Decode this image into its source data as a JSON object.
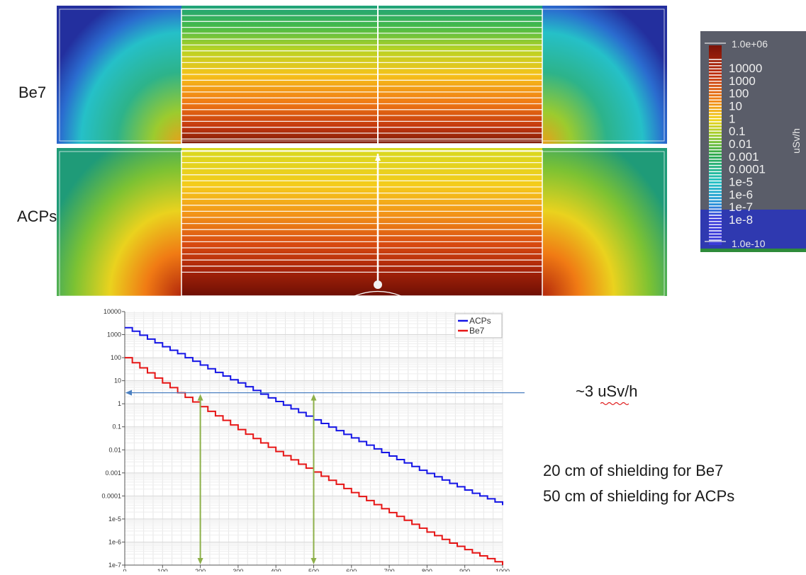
{
  "maps": {
    "be7_label": "Be7",
    "acps_label": "ACPs"
  },
  "colorbar": {
    "unit": "uSv/h",
    "max_label": "1.0e+06",
    "min_label": "1.0e-10",
    "tick_labels": [
      "10000",
      "1000",
      "100",
      "10",
      "1",
      "0.1",
      "0.01",
      "0.001",
      "0.0001",
      "1e-5",
      "1e-6",
      "1e-7",
      "1e-8"
    ]
  },
  "annotations": {
    "threshold": "~3 uSv/h",
    "be7_shielding": "20 cm of shielding for Be7",
    "acps_shielding": "50 cm of shielding for ACPs"
  },
  "colors": {
    "acps": "#1515e6",
    "be7": "#e61515",
    "threshold_line": "#4a7fc1",
    "marker_arrows": "#8db04a"
  },
  "chart_data": {
    "type": "line",
    "title": "",
    "xlabel": "",
    "ylabel": "",
    "y_scale": "log",
    "xlim": [
      0,
      1000
    ],
    "ylim": [
      1e-07,
      10000
    ],
    "grid": true,
    "legend_position": "top-right",
    "x_tick_labels": [
      "0",
      "100",
      "200",
      "300",
      "400",
      "500",
      "600",
      "700",
      "800",
      "900",
      "1000"
    ],
    "y_tick_labels": [
      "10000",
      "1000",
      "100",
      "10",
      "1",
      "0.1",
      "0.01",
      "0.001",
      "0.0001",
      "1e-5",
      "1e-6",
      "1e-7"
    ],
    "series": [
      {
        "name": "ACPs",
        "x": [
          0,
          20,
          40,
          60,
          80,
          100,
          120,
          140,
          160,
          180,
          200,
          220,
          240,
          260,
          280,
          300,
          320,
          340,
          360,
          380,
          400,
          420,
          440,
          460,
          480,
          500,
          520,
          540,
          560,
          580,
          600,
          620,
          640,
          660,
          680,
          700,
          720,
          740,
          760,
          780,
          800,
          820,
          840,
          860,
          880,
          900,
          920,
          940,
          960,
          980,
          1000
        ],
        "values": [
          2000,
          1400,
          940,
          640,
          440,
          300,
          210,
          150,
          100,
          70,
          48,
          33,
          23,
          16,
          11,
          8,
          5.5,
          3.8,
          2.6,
          1.8,
          1.25,
          0.87,
          0.6,
          0.42,
          0.29,
          0.2,
          0.14,
          0.097,
          0.068,
          0.047,
          0.033,
          0.023,
          0.016,
          0.011,
          0.0077,
          0.0054,
          0.0038,
          0.0027,
          0.0019,
          0.0013,
          0.00095,
          0.00068,
          0.00049,
          0.00035,
          0.00025,
          0.00018,
          0.00013,
          0.0001,
          7.5e-05,
          5.5e-05,
          4e-05
        ]
      },
      {
        "name": "Be7",
        "x": [
          0,
          20,
          40,
          60,
          80,
          100,
          120,
          140,
          160,
          180,
          200,
          220,
          240,
          260,
          280,
          300,
          320,
          340,
          360,
          380,
          400,
          420,
          440,
          460,
          480,
          500,
          520,
          540,
          560,
          580,
          600,
          620,
          640,
          660,
          680,
          700,
          720,
          740,
          760,
          780,
          800,
          820,
          840,
          860,
          880,
          900,
          920,
          940,
          960,
          980,
          1000
        ],
        "values": [
          100,
          60,
          36,
          22,
          13,
          8,
          5,
          3,
          1.9,
          1.2,
          0.75,
          0.47,
          0.3,
          0.19,
          0.12,
          0.076,
          0.048,
          0.031,
          0.02,
          0.013,
          0.0085,
          0.0056,
          0.0037,
          0.0024,
          0.0016,
          0.0011,
          0.00072,
          0.00048,
          0.00032,
          0.00021,
          0.00014,
          9.5e-05,
          6.3e-05,
          4.2e-05,
          2.8e-05,
          1.9e-05,
          1.3e-05,
          8.8e-06,
          5.9e-06,
          4e-06,
          2.7e-06,
          1.9e-06,
          1.3e-06,
          9e-07,
          6.5e-07,
          4.7e-07,
          3.4e-07,
          2.5e-07,
          1.9e-07,
          1.4e-07,
          1e-07
        ]
      }
    ],
    "threshold": 3,
    "markers_x": [
      200,
      500
    ]
  }
}
